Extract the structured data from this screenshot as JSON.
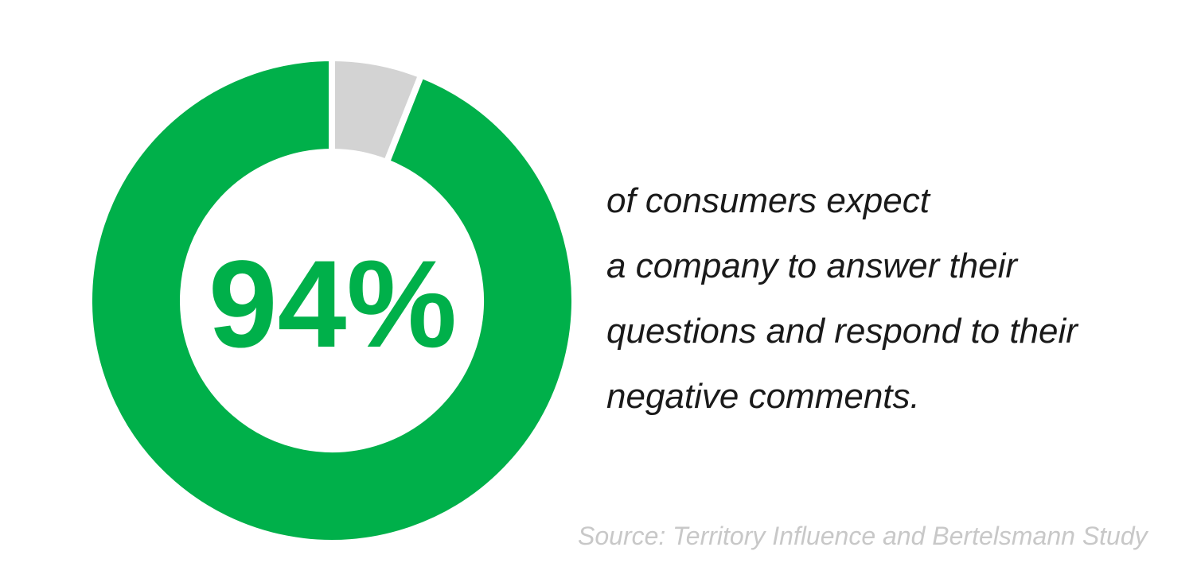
{
  "chart_data": {
    "type": "pie",
    "variant": "donut",
    "title": "",
    "slices": [
      {
        "value": 94,
        "color": "#00b04a"
      },
      {
        "value": 6,
        "color": "#d3d3d3"
      }
    ],
    "center_label": "94%"
  },
  "statement": {
    "lines": [
      "of consumers expect",
      "a company to answer their",
      "questions and respond to their",
      "negative comments."
    ]
  },
  "source": "Source: Territory Influence and Bertelsmann Study",
  "colors": {
    "accent": "#00b04a",
    "remainder": "#d3d3d3",
    "text": "#1a1a1a",
    "source_text": "#c8c8c8"
  }
}
